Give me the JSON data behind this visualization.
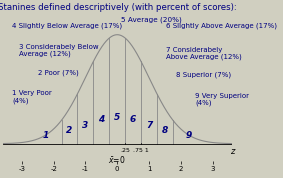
{
  "title": "Stanines defined descriptively (with percent of scores):",
  "title_fontsize": 6.2,
  "title_color": "#000080",
  "curve_color": "#888888",
  "line_color": "#888888",
  "text_color": "#000080",
  "bg_color": "#d0cfc0",
  "xlim": [
    -3.6,
    3.6
  ],
  "ylim": [
    -0.065,
    0.48
  ],
  "stanine_boundaries": [
    -1.75,
    -1.25,
    -0.75,
    -0.25,
    0.25,
    0.75,
    1.25,
    1.75
  ],
  "stanine_labels": [
    "1",
    "2",
    "3",
    "4",
    "5",
    "6",
    "7",
    "8",
    "9"
  ],
  "stanine_centers": [
    -2.25,
    -1.5,
    -1.0,
    -0.5,
    0.0,
    0.5,
    1.0,
    1.5,
    2.25
  ],
  "stanine_descriptions": [
    "1 Very Poor\n(4%)",
    "2 Poor (7%)",
    "3 Considerabely Below\nAverage (12%)",
    "4 Slightly Below Average (17%)",
    "5 Average (20%)",
    "6 Slightly Above Average (17%)",
    "7 Considerabely\nAbove Average (12%)",
    "8 Superior (7%)",
    "9 Very Superior\n(4%)"
  ],
  "desc_x": [
    -3.3,
    -2.5,
    -3.1,
    -3.3,
    0.12,
    1.55,
    1.55,
    1.85,
    2.45
  ],
  "desc_y": [
    0.195,
    0.27,
    0.365,
    0.445,
    0.465,
    0.445,
    0.355,
    0.265,
    0.185
  ],
  "desc_ha": [
    "left",
    "left",
    "left",
    "left",
    "left",
    "left",
    "left",
    "left",
    "left"
  ],
  "desc_fontsize": [
    5.0,
    5.0,
    5.0,
    5.0,
    5.2,
    5.0,
    5.0,
    5.0,
    5.0
  ],
  "num_fontsize": 6.5,
  "xticks": [
    -3,
    -2,
    -1,
    0,
    1,
    2,
    3
  ],
  "extra_ticks": [
    0.25,
    0.75
  ],
  "extra_tick_labels": [
    ".25",
    ".75 1"
  ]
}
